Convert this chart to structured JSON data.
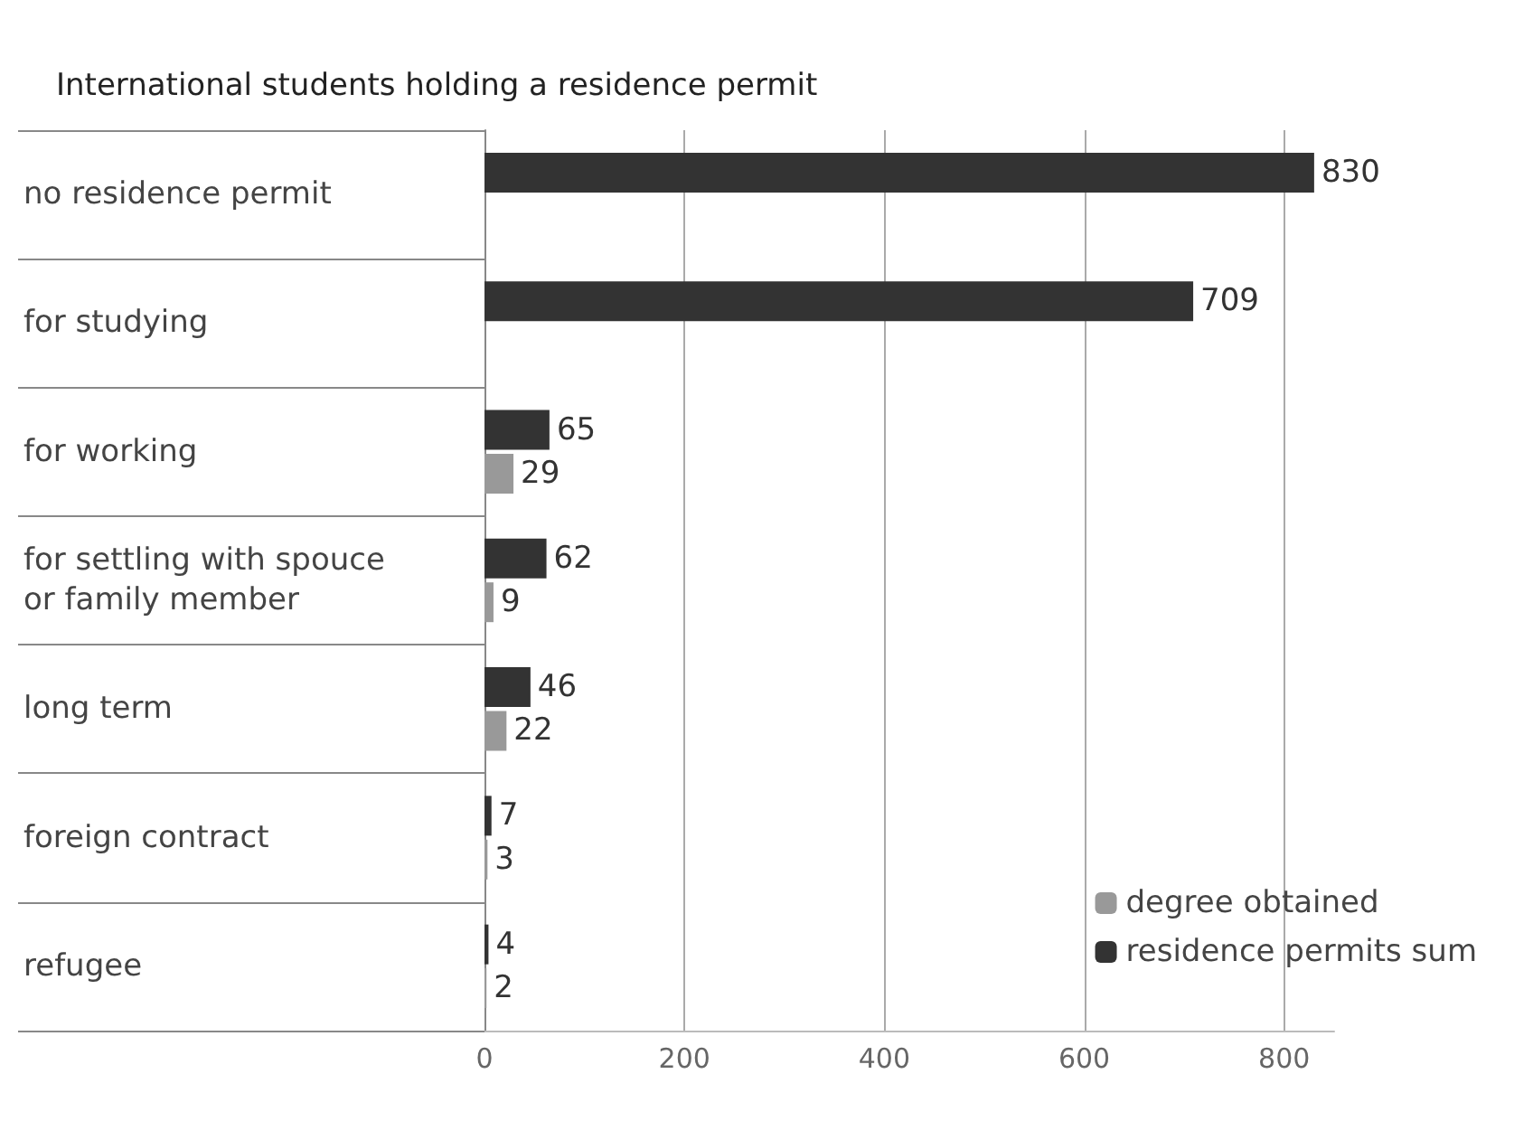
{
  "chart_data": {
    "type": "bar",
    "orientation": "horizontal",
    "title": "International students holding a residence permit",
    "categories": [
      "no residence permit",
      "for studying",
      "for working",
      "for settling with spouce\nor family member",
      "long term",
      "foreign contract",
      "refugee"
    ],
    "series": [
      {
        "name": "residence permits sum",
        "color": "#333333",
        "values": [
          830,
          709,
          65,
          62,
          46,
          7,
          4
        ]
      },
      {
        "name": "degree obtained",
        "color": "#999999",
        "values": [
          null,
          null,
          29,
          9,
          22,
          3,
          2
        ]
      }
    ],
    "xlim": [
      0,
      850
    ],
    "xticks": [
      0,
      200,
      400,
      600,
      800
    ],
    "grid": "x",
    "legend": "bottom right",
    "data_labels": true
  }
}
